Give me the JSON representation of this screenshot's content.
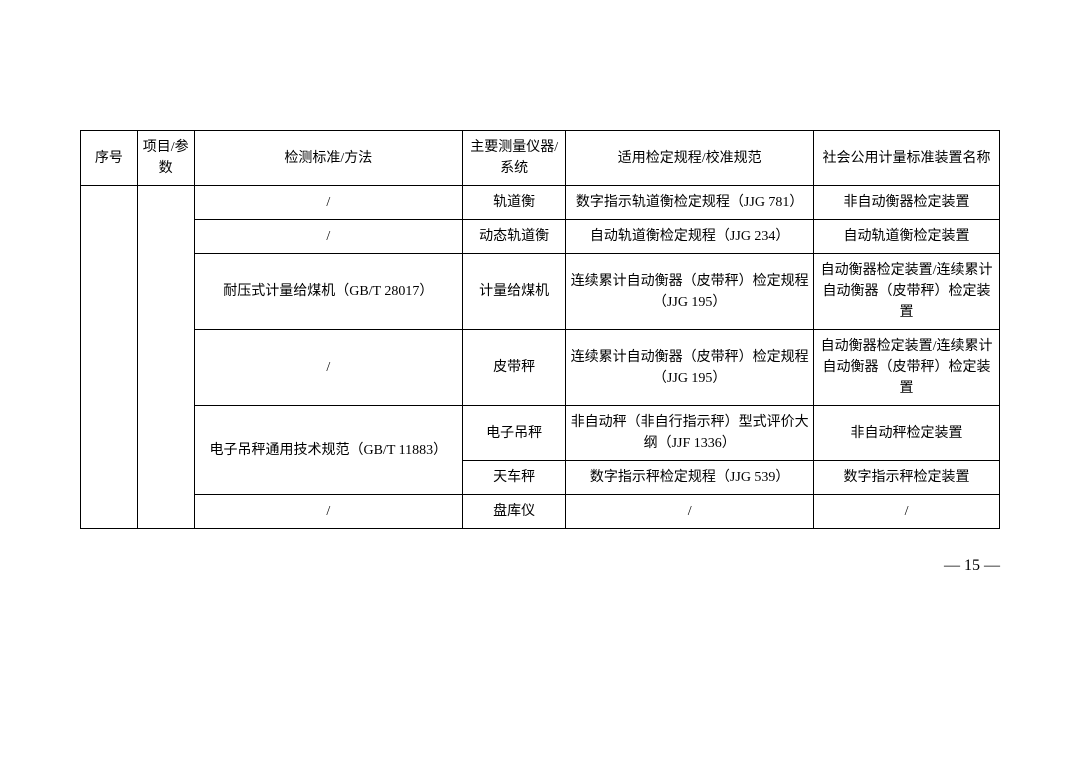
{
  "table": {
    "headers": {
      "c1": "序号",
      "c2": "项目/参数",
      "c3": "检测标准/方法",
      "c4": "主要测量仪器/系统",
      "c5": "适用检定规程/校准规范",
      "c6": "社会公用计量标准装置名称"
    },
    "rows": [
      {
        "c3": "/",
        "c4": "轨道衡",
        "c5": "数字指示轨道衡检定规程（JJG 781）",
        "c6": "非自动衡器检定装置"
      },
      {
        "c3": "/",
        "c4": "动态轨道衡",
        "c5": "自动轨道衡检定规程（JJG 234）",
        "c6": "自动轨道衡检定装置"
      },
      {
        "c3": "耐压式计量给煤机（GB/T 28017）",
        "c4": "计量给煤机",
        "c5": "连续累计自动衡器（皮带秤）检定规程（JJG 195）",
        "c6": "自动衡器检定装置/连续累计自动衡器（皮带秤）检定装置"
      },
      {
        "c3": "/",
        "c4": "皮带秤",
        "c5": "连续累计自动衡器（皮带秤）检定规程（JJG 195）",
        "c6": "自动衡器检定装置/连续累计自动衡器（皮带秤）检定装置"
      },
      {
        "c3": "电子吊秤通用技术规范（GB/T 11883）",
        "c3_rowspan": 2,
        "c4": "电子吊秤",
        "c5": "非自动秤（非自行指示秤）型式评价大纲（JJF 1336）",
        "c6": "非自动秤检定装置"
      },
      {
        "c4": "天车秤",
        "c5": "数字指示秤检定规程（JJG 539）",
        "c6": "数字指示秤检定装置"
      },
      {
        "c3": "/",
        "c4": "盘库仪",
        "c5": "/",
        "c6": "/"
      }
    ]
  },
  "pageNumber": "— 15 —",
  "colors": {
    "border": "#000000",
    "text": "#000000",
    "bg": "#ffffff"
  }
}
